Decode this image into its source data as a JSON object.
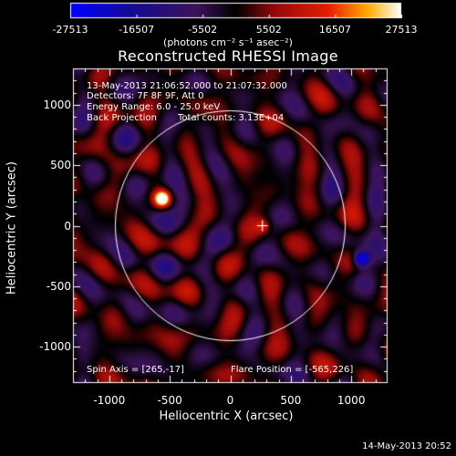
{
  "chart_data": {
    "type": "heatmap",
    "title": "Reconstructed RHESSI Image",
    "xlabel": "Heliocentric X (arcsec)",
    "ylabel": "Heliocentric Y (arcsec)",
    "xlim": [
      -1300,
      1300
    ],
    "ylim": [
      -1300,
      1300
    ],
    "xticks": [
      "-1000",
      "-500",
      "0",
      "500",
      "1000"
    ],
    "yticks": [
      "1000",
      "500",
      "0",
      "-500",
      "-1000"
    ],
    "xtick_values": [
      -1000,
      -500,
      0,
      500,
      1000
    ],
    "ytick_values": [
      1000,
      500,
      0,
      -500,
      -1000
    ],
    "colorbar": {
      "ticks": [
        "-27513",
        "-16507",
        "-5502",
        "5502",
        "16507",
        "27513"
      ],
      "tick_values": [
        -27513,
        -16507,
        -5502,
        5502,
        16507,
        27513
      ],
      "unit_label": "(photons cm⁻² s⁻¹ asec⁻²)",
      "range": [
        -27513,
        27513
      ]
    },
    "annotations": {
      "time_range": "13-May-2013 21:06:52.000 to 21:07:32.000",
      "detectors": "Detectors: 7F 8F 9F, Att 0",
      "energy_range": "Energy Range: 6.0 - 25.0 keV",
      "method": "Back Projection",
      "total_counts": "Total counts: 3.13E+04",
      "spin_axis": "Spin Axis = [265,-17]",
      "flare_position": "Flare Position = [-565,226]"
    },
    "features": {
      "solar_disk_radius_arcsec": 950,
      "bright_source": {
        "x": -565,
        "y": 226,
        "value": 27513
      },
      "negative_source": {
        "x": 1080,
        "y": -270,
        "value": -27513
      },
      "cross_marker": {
        "x": 265,
        "y": 0
      }
    }
  },
  "footer": {
    "timestamp": "14-May-2013 20:52"
  }
}
